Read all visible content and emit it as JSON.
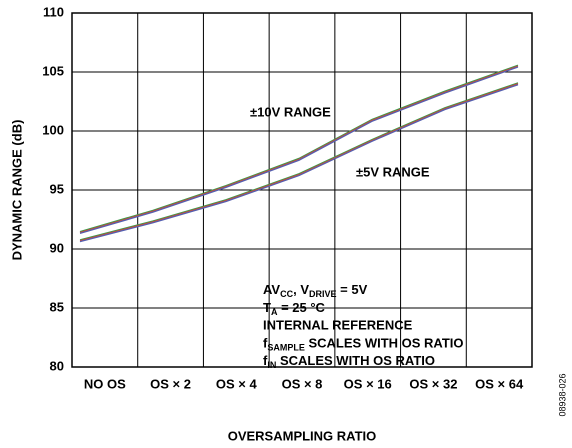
{
  "chart_data": {
    "type": "line",
    "y_label": "DYNAMIC RANGE (dB)",
    "x_label": "OVERSAMPLING RATIO",
    "categories": [
      "NO OS",
      "OS × 2",
      "OS × 4",
      "OS × 8",
      "OS × 16",
      "OS × 32",
      "OS × 64"
    ],
    "series": [
      {
        "name": "±10V RANGE",
        "colors": [
          "#3a9a4a",
          "#c84a3c",
          "#5560b0"
        ],
        "values": [
          91.4,
          93.2,
          95.3,
          97.6,
          100.9,
          103.3,
          105.5
        ]
      },
      {
        "name": "±5V RANGE",
        "colors": [
          "#3a9a4a",
          "#c84a3c",
          "#5560b0"
        ],
        "values": [
          90.7,
          92.3,
          94.1,
          96.3,
          99.2,
          101.9,
          104.0
        ]
      }
    ],
    "ylim": [
      80,
      110
    ],
    "yticks": [
      80,
      85,
      90,
      95,
      100,
      105,
      110
    ],
    "grid": true,
    "annotation": [
      [
        "AV",
        "CC",
        ", V",
        "DRIVE",
        " = 5V"
      ],
      [
        "T",
        "A",
        "  = 25 °C"
      ],
      [
        "INTERNAL REFERENCE"
      ],
      [
        "f",
        "SAMPLE",
        " SCALES WITH OS RATIO"
      ],
      [
        "f",
        "IN",
        " SCALES WITH OS RATIO"
      ]
    ],
    "figure_id": "08938-026"
  }
}
